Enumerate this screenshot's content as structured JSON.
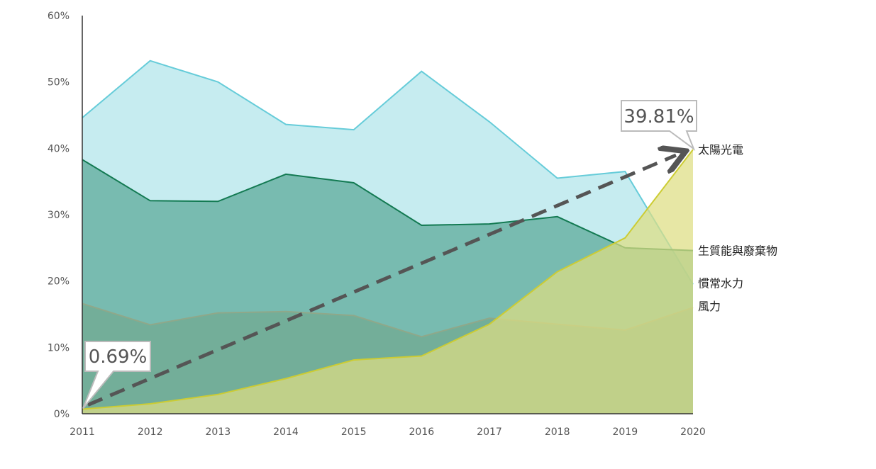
{
  "chart_data": {
    "type": "area",
    "title": "",
    "xlabel": "",
    "ylabel": "",
    "x": [
      2011,
      2012,
      2013,
      2014,
      2015,
      2016,
      2017,
      2018,
      2019,
      2020
    ],
    "ylim": [
      0,
      60
    ],
    "y_ticks": [
      "0%",
      "10%",
      "20%",
      "30%",
      "40%",
      "50%",
      "60%"
    ],
    "x_ticks": [
      "2011",
      "2012",
      "2013",
      "2014",
      "2015",
      "2016",
      "2017",
      "2018",
      "2019",
      "2020"
    ],
    "grid": false,
    "series": [
      {
        "name": "慣常水力",
        "color": "#66ccd9",
        "fill": "#b3e5eb",
        "values": [
          44.6,
          53.2,
          50.0,
          43.6,
          42.8,
          51.6,
          44.0,
          35.5,
          36.5,
          19.5
        ]
      },
      {
        "name": "生質能與廢棄物",
        "color": "#137a52",
        "fill": "#5aa897",
        "values": [
          38.3,
          32.1,
          32.0,
          36.1,
          34.8,
          28.4,
          28.6,
          29.7,
          25.0,
          24.6
        ]
      },
      {
        "name": "風力",
        "color": "#8fa88a",
        "fill": "#6fa58a",
        "values": [
          16.6,
          13.4,
          15.2,
          15.4,
          14.8,
          11.6,
          14.4,
          13.5,
          12.6,
          16.0
        ]
      },
      {
        "name": "太陽光電",
        "color": "#cccc33",
        "fill": "#dede82",
        "values": [
          0.69,
          1.5,
          2.9,
          5.3,
          8.1,
          8.7,
          13.5,
          21.4,
          26.5,
          39.81
        ]
      }
    ],
    "annotations": {
      "start_label": "0.69%",
      "end_label": "39.81%"
    }
  }
}
